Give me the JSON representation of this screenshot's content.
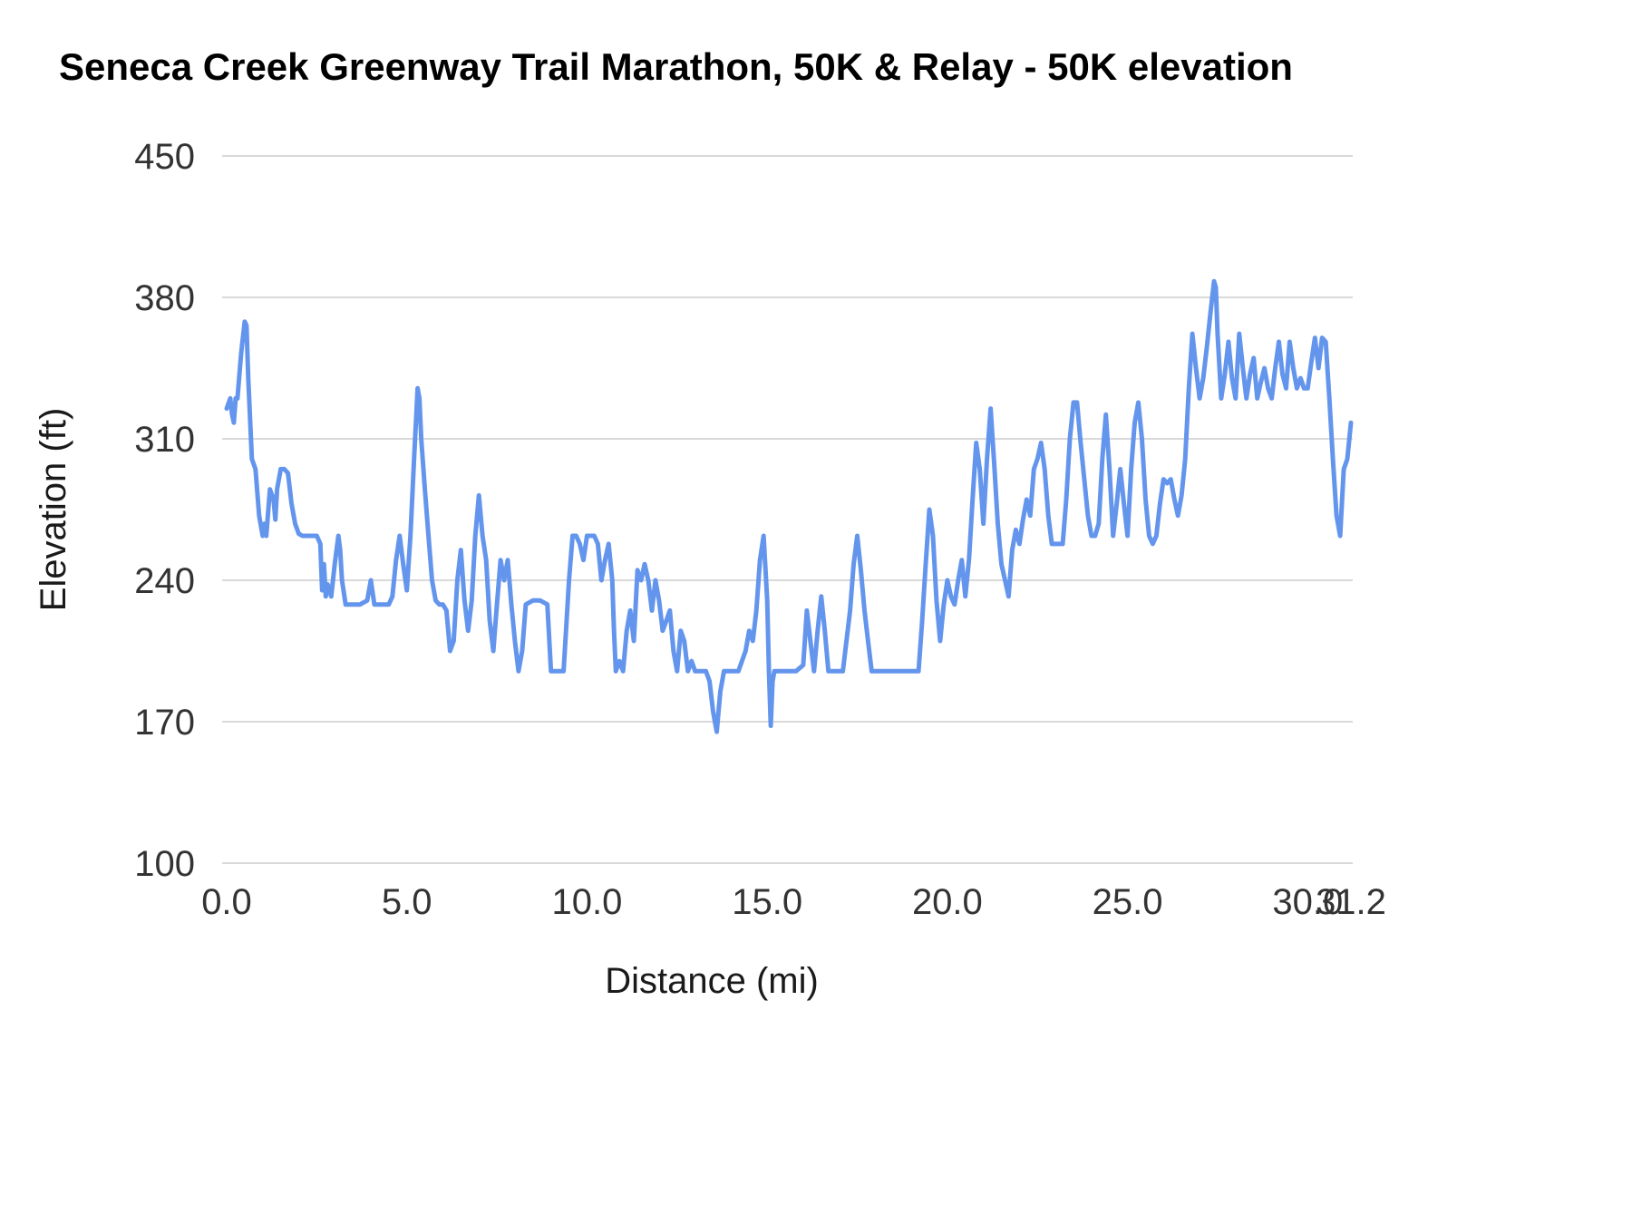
{
  "chart_data": {
    "type": "line",
    "title": "Seneca Creek Greenway Trail Marathon, 50K & Relay - 50K elevation",
    "xlabel": "Distance (mi)",
    "ylabel": "Elevation (ft)",
    "xlim": [
      0,
      31.2
    ],
    "ylim": [
      100,
      450
    ],
    "x_ticks": [
      0,
      5,
      10,
      15,
      20,
      25,
      30,
      31.2
    ],
    "x_tick_labels": [
      "0.0",
      "5.0",
      "10.0",
      "15.0",
      "20.0",
      "25.0",
      "30.0",
      "31.2"
    ],
    "y_ticks": [
      100,
      170,
      240,
      310,
      380,
      450
    ],
    "y_tick_labels": [
      "100",
      "170",
      "240",
      "310",
      "380",
      "450"
    ],
    "grid": "horizontal",
    "legend": "none",
    "colors": {
      "line": "#6495ED",
      "grid": "#d9d9d9",
      "text": "#333333",
      "title": "#000000"
    },
    "series": [
      {
        "name": "Elevation",
        "points": [
          [
            0.0,
            325
          ],
          [
            0.1,
            330
          ],
          [
            0.15,
            322
          ],
          [
            0.2,
            318
          ],
          [
            0.25,
            330
          ],
          [
            0.3,
            330
          ],
          [
            0.4,
            352
          ],
          [
            0.5,
            368
          ],
          [
            0.55,
            366
          ],
          [
            0.6,
            340
          ],
          [
            0.7,
            300
          ],
          [
            0.8,
            295
          ],
          [
            0.9,
            272
          ],
          [
            1.0,
            262
          ],
          [
            1.05,
            268
          ],
          [
            1.1,
            262
          ],
          [
            1.2,
            285
          ],
          [
            1.3,
            280
          ],
          [
            1.35,
            270
          ],
          [
            1.4,
            285
          ],
          [
            1.5,
            295
          ],
          [
            1.6,
            295
          ],
          [
            1.7,
            293
          ],
          [
            1.8,
            278
          ],
          [
            1.9,
            268
          ],
          [
            2.0,
            263
          ],
          [
            2.1,
            262
          ],
          [
            2.3,
            262
          ],
          [
            2.5,
            262
          ],
          [
            2.6,
            258
          ],
          [
            2.65,
            235
          ],
          [
            2.7,
            248
          ],
          [
            2.75,
            232
          ],
          [
            2.8,
            238
          ],
          [
            2.9,
            232
          ],
          [
            3.0,
            248
          ],
          [
            3.1,
            262
          ],
          [
            3.15,
            255
          ],
          [
            3.2,
            240
          ],
          [
            3.3,
            228
          ],
          [
            3.5,
            228
          ],
          [
            3.7,
            228
          ],
          [
            3.9,
            230
          ],
          [
            4.0,
            240
          ],
          [
            4.1,
            228
          ],
          [
            4.3,
            228
          ],
          [
            4.5,
            228
          ],
          [
            4.6,
            232
          ],
          [
            4.7,
            250
          ],
          [
            4.8,
            262
          ],
          [
            4.9,
            248
          ],
          [
            5.0,
            235
          ],
          [
            5.1,
            262
          ],
          [
            5.2,
            300
          ],
          [
            5.3,
            335
          ],
          [
            5.35,
            330
          ],
          [
            5.4,
            310
          ],
          [
            5.5,
            285
          ],
          [
            5.6,
            262
          ],
          [
            5.7,
            240
          ],
          [
            5.8,
            230
          ],
          [
            5.9,
            228
          ],
          [
            6.0,
            228
          ],
          [
            6.1,
            225
          ],
          [
            6.2,
            205
          ],
          [
            6.3,
            210
          ],
          [
            6.4,
            240
          ],
          [
            6.5,
            255
          ],
          [
            6.6,
            230
          ],
          [
            6.7,
            215
          ],
          [
            6.8,
            230
          ],
          [
            6.9,
            262
          ],
          [
            7.0,
            282
          ],
          [
            7.1,
            262
          ],
          [
            7.2,
            250
          ],
          [
            7.3,
            220
          ],
          [
            7.4,
            205
          ],
          [
            7.5,
            228
          ],
          [
            7.6,
            250
          ],
          [
            7.7,
            240
          ],
          [
            7.8,
            250
          ],
          [
            7.9,
            228
          ],
          [
            8.0,
            210
          ],
          [
            8.1,
            195
          ],
          [
            8.2,
            205
          ],
          [
            8.3,
            228
          ],
          [
            8.5,
            230
          ],
          [
            8.7,
            230
          ],
          [
            8.9,
            228
          ],
          [
            9.0,
            195
          ],
          [
            9.2,
            195
          ],
          [
            9.35,
            195
          ],
          [
            9.5,
            240
          ],
          [
            9.6,
            262
          ],
          [
            9.7,
            262
          ],
          [
            9.8,
            258
          ],
          [
            9.9,
            250
          ],
          [
            10.0,
            262
          ],
          [
            10.1,
            262
          ],
          [
            10.2,
            262
          ],
          [
            10.3,
            258
          ],
          [
            10.4,
            240
          ],
          [
            10.5,
            250
          ],
          [
            10.6,
            258
          ],
          [
            10.7,
            240
          ],
          [
            10.75,
            215
          ],
          [
            10.8,
            195
          ],
          [
            10.9,
            200
          ],
          [
            11.0,
            195
          ],
          [
            11.1,
            215
          ],
          [
            11.2,
            225
          ],
          [
            11.3,
            210
          ],
          [
            11.4,
            245
          ],
          [
            11.5,
            240
          ],
          [
            11.6,
            248
          ],
          [
            11.7,
            240
          ],
          [
            11.8,
            225
          ],
          [
            11.9,
            240
          ],
          [
            12.0,
            230
          ],
          [
            12.1,
            215
          ],
          [
            12.2,
            220
          ],
          [
            12.3,
            225
          ],
          [
            12.4,
            205
          ],
          [
            12.5,
            195
          ],
          [
            12.6,
            215
          ],
          [
            12.7,
            210
          ],
          [
            12.8,
            195
          ],
          [
            12.9,
            200
          ],
          [
            13.0,
            195
          ],
          [
            13.1,
            195
          ],
          [
            13.3,
            195
          ],
          [
            13.4,
            190
          ],
          [
            13.5,
            175
          ],
          [
            13.6,
            165
          ],
          [
            13.7,
            185
          ],
          [
            13.8,
            195
          ],
          [
            14.0,
            195
          ],
          [
            14.2,
            195
          ],
          [
            14.4,
            205
          ],
          [
            14.5,
            215
          ],
          [
            14.6,
            210
          ],
          [
            14.7,
            225
          ],
          [
            14.8,
            250
          ],
          [
            14.9,
            262
          ],
          [
            15.0,
            230
          ],
          [
            15.05,
            195
          ],
          [
            15.1,
            168
          ],
          [
            15.15,
            190
          ],
          [
            15.2,
            195
          ],
          [
            15.4,
            195
          ],
          [
            15.6,
            195
          ],
          [
            15.8,
            195
          ],
          [
            16.0,
            198
          ],
          [
            16.1,
            225
          ],
          [
            16.2,
            210
          ],
          [
            16.3,
            195
          ],
          [
            16.4,
            215
          ],
          [
            16.5,
            232
          ],
          [
            16.6,
            215
          ],
          [
            16.7,
            195
          ],
          [
            16.9,
            195
          ],
          [
            17.1,
            195
          ],
          [
            17.2,
            210
          ],
          [
            17.3,
            225
          ],
          [
            17.4,
            248
          ],
          [
            17.5,
            262
          ],
          [
            17.6,
            245
          ],
          [
            17.7,
            225
          ],
          [
            17.8,
            210
          ],
          [
            17.9,
            195
          ],
          [
            18.1,
            195
          ],
          [
            18.4,
            195
          ],
          [
            18.7,
            195
          ],
          [
            19.0,
            195
          ],
          [
            19.2,
            195
          ],
          [
            19.3,
            220
          ],
          [
            19.4,
            248
          ],
          [
            19.5,
            275
          ],
          [
            19.6,
            262
          ],
          [
            19.7,
            230
          ],
          [
            19.8,
            210
          ],
          [
            19.9,
            228
          ],
          [
            20.0,
            240
          ],
          [
            20.1,
            232
          ],
          [
            20.2,
            228
          ],
          [
            20.3,
            240
          ],
          [
            20.4,
            250
          ],
          [
            20.5,
            232
          ],
          [
            20.6,
            250
          ],
          [
            20.7,
            280
          ],
          [
            20.8,
            308
          ],
          [
            20.9,
            295
          ],
          [
            21.0,
            268
          ],
          [
            21.1,
            300
          ],
          [
            21.2,
            325
          ],
          [
            21.3,
            298
          ],
          [
            21.4,
            268
          ],
          [
            21.5,
            248
          ],
          [
            21.6,
            240
          ],
          [
            21.7,
            232
          ],
          [
            21.8,
            255
          ],
          [
            21.9,
            265
          ],
          [
            22.0,
            258
          ],
          [
            22.1,
            270
          ],
          [
            22.2,
            280
          ],
          [
            22.3,
            272
          ],
          [
            22.4,
            295
          ],
          [
            22.5,
            300
          ],
          [
            22.6,
            308
          ],
          [
            22.7,
            295
          ],
          [
            22.8,
            272
          ],
          [
            22.9,
            258
          ],
          [
            23.0,
            258
          ],
          [
            23.2,
            258
          ],
          [
            23.3,
            280
          ],
          [
            23.4,
            310
          ],
          [
            23.5,
            328
          ],
          [
            23.6,
            328
          ],
          [
            23.7,
            308
          ],
          [
            23.8,
            290
          ],
          [
            23.9,
            272
          ],
          [
            24.0,
            262
          ],
          [
            24.1,
            262
          ],
          [
            24.2,
            268
          ],
          [
            24.3,
            300
          ],
          [
            24.4,
            322
          ],
          [
            24.5,
            295
          ],
          [
            24.6,
            262
          ],
          [
            24.7,
            278
          ],
          [
            24.8,
            295
          ],
          [
            24.9,
            278
          ],
          [
            25.0,
            262
          ],
          [
            25.1,
            295
          ],
          [
            25.2,
            318
          ],
          [
            25.3,
            328
          ],
          [
            25.4,
            310
          ],
          [
            25.5,
            280
          ],
          [
            25.6,
            262
          ],
          [
            25.7,
            258
          ],
          [
            25.8,
            262
          ],
          [
            25.9,
            278
          ],
          [
            26.0,
            290
          ],
          [
            26.1,
            288
          ],
          [
            26.2,
            290
          ],
          [
            26.3,
            280
          ],
          [
            26.4,
            272
          ],
          [
            26.5,
            282
          ],
          [
            26.6,
            300
          ],
          [
            26.7,
            335
          ],
          [
            26.8,
            362
          ],
          [
            26.9,
            345
          ],
          [
            27.0,
            330
          ],
          [
            27.1,
            340
          ],
          [
            27.2,
            355
          ],
          [
            27.3,
            372
          ],
          [
            27.4,
            388
          ],
          [
            27.45,
            385
          ],
          [
            27.5,
            362
          ],
          [
            27.6,
            330
          ],
          [
            27.7,
            342
          ],
          [
            27.8,
            358
          ],
          [
            27.9,
            340
          ],
          [
            28.0,
            330
          ],
          [
            28.1,
            362
          ],
          [
            28.2,
            345
          ],
          [
            28.3,
            330
          ],
          [
            28.4,
            342
          ],
          [
            28.5,
            350
          ],
          [
            28.6,
            330
          ],
          [
            28.7,
            338
          ],
          [
            28.8,
            345
          ],
          [
            28.9,
            335
          ],
          [
            29.0,
            330
          ],
          [
            29.1,
            345
          ],
          [
            29.2,
            358
          ],
          [
            29.3,
            342
          ],
          [
            29.4,
            335
          ],
          [
            29.5,
            358
          ],
          [
            29.6,
            345
          ],
          [
            29.7,
            335
          ],
          [
            29.8,
            340
          ],
          [
            29.9,
            335
          ],
          [
            30.0,
            335
          ],
          [
            30.1,
            348
          ],
          [
            30.2,
            360
          ],
          [
            30.3,
            345
          ],
          [
            30.4,
            360
          ],
          [
            30.5,
            358
          ],
          [
            30.6,
            330
          ],
          [
            30.7,
            300
          ],
          [
            30.8,
            272
          ],
          [
            30.9,
            262
          ],
          [
            31.0,
            295
          ],
          [
            31.1,
            300
          ],
          [
            31.2,
            318
          ]
        ]
      }
    ]
  }
}
